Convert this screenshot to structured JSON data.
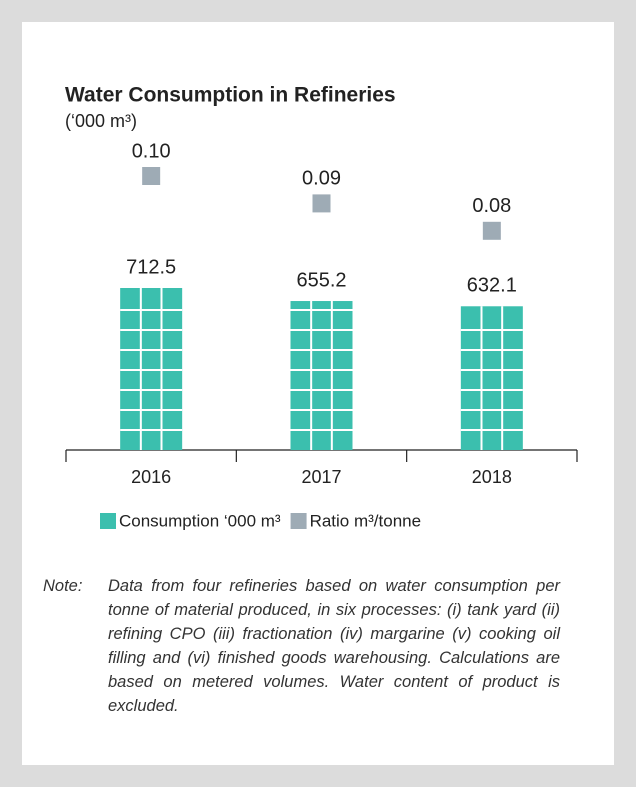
{
  "chart_data": {
    "type": "bar",
    "title": "Water Consumption in Refineries",
    "subtitle": "(‘000 m³)",
    "categories": [
      "2016",
      "2017",
      "2018"
    ],
    "series": [
      {
        "name": "Consumption ‘000 m³",
        "color": "#3bbfae",
        "values": [
          712.5,
          655.2,
          632.1
        ]
      },
      {
        "name": "Ratio m³/tonne",
        "color": "#9eabb5",
        "axis": "y2",
        "values": [
          0.1,
          0.09,
          0.08
        ],
        "value_labels": [
          "0.10",
          "0.09",
          "0.08"
        ]
      }
    ],
    "note_label": "Note:",
    "note": "Data from four refineries based on water consumption per tonne of material produced, in six processes: (i) tank yard (ii) refining CPO (iii) fractionation (iv) margarine (v) cooking oil filling and (vi) finished goods warehousing. Calculations are based on metered volumes. Water content of product is excluded."
  }
}
